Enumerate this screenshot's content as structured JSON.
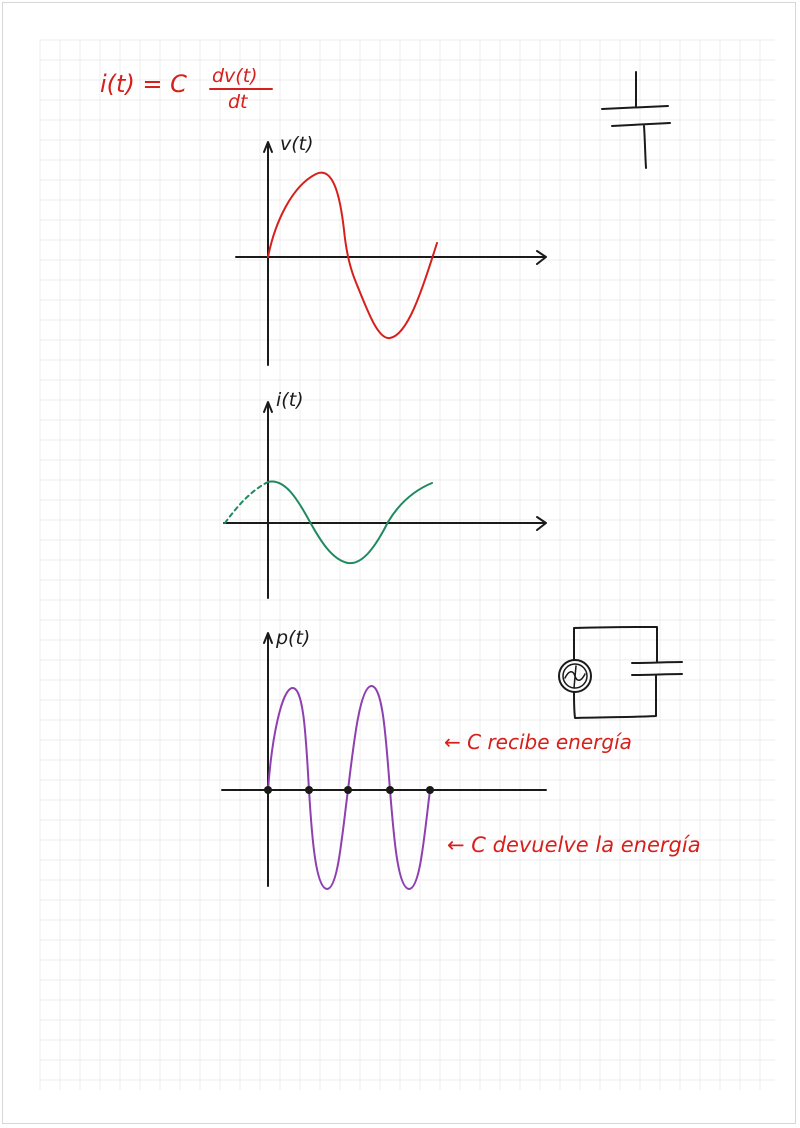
{
  "page": {
    "type": "handwritten-notes"
  },
  "colors": {
    "background": "#ffffff",
    "grid": "#ececec",
    "ink": "#1a1a1a",
    "voltage": "#d6201c",
    "current": "#1f8a5f",
    "power": "#8e3fb0",
    "annotation": "#d6201c"
  },
  "formula": {
    "lhs": "i(t) = C",
    "numerator": "dv(t)",
    "denominator": "dt"
  },
  "graphs": {
    "voltage": {
      "label": "v(t)"
    },
    "current": {
      "label": "i(t)"
    },
    "power": {
      "label": "p(t)"
    }
  },
  "annotations": {
    "receives": "← C recibe energía",
    "returns": "← C devuelve la energía"
  },
  "icons": {
    "capacitor_symbol": "capacitor-icon",
    "circuit": "ac-source-capacitor-circuit-icon"
  }
}
